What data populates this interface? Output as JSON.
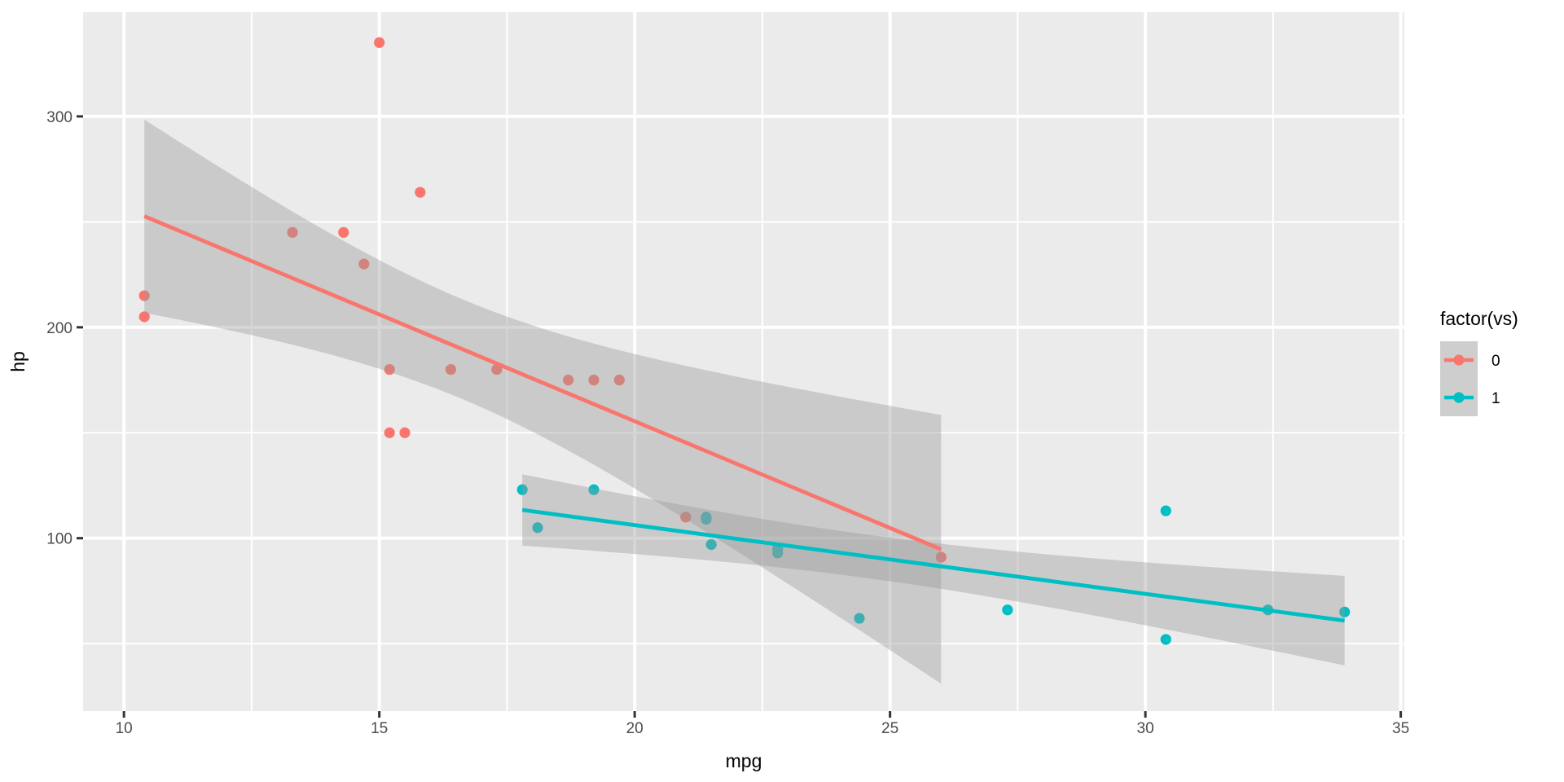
{
  "chart_data": {
    "type": "scatter",
    "title": "",
    "xlabel": "mpg",
    "ylabel": "hp",
    "x_ticks": [
      10,
      15,
      20,
      25,
      30,
      35
    ],
    "y_ticks": [
      100,
      200,
      300
    ],
    "x_minor_ticks": [
      12.5,
      17.5,
      22.5,
      27.5,
      32.5
    ],
    "y_minor_ticks": [
      50,
      150,
      250,
      350
    ],
    "xlim": [
      9.2,
      35.07
    ],
    "ylim": [
      18.0,
      349.4
    ],
    "grid": "on",
    "legend": {
      "title": "factor(vs)",
      "position": "right",
      "entries": [
        {
          "label": "0",
          "color": "#F8766D"
        },
        {
          "label": "1",
          "color": "#00BFC4"
        }
      ]
    },
    "smooth": {
      "method": "lm",
      "level": 0.95,
      "ribbon_color": "#999999",
      "ribbon_opacity": 0.4
    },
    "series": [
      {
        "name": "0",
        "color": "#F8766D",
        "points": [
          [
            21.0,
            110
          ],
          [
            21.0,
            110
          ],
          [
            18.7,
            175
          ],
          [
            14.3,
            245
          ],
          [
            16.4,
            180
          ],
          [
            17.3,
            180
          ],
          [
            15.2,
            180
          ],
          [
            10.4,
            205
          ],
          [
            10.4,
            215
          ],
          [
            14.7,
            230
          ],
          [
            15.5,
            150
          ],
          [
            15.2,
            150
          ],
          [
            13.3,
            245
          ],
          [
            19.2,
            175
          ],
          [
            26.0,
            91
          ],
          [
            15.8,
            264
          ],
          [
            19.7,
            175
          ],
          [
            15.0,
            335
          ]
        ]
      },
      {
        "name": "1",
        "color": "#00BFC4",
        "points": [
          [
            22.8,
            93
          ],
          [
            21.4,
            110
          ],
          [
            18.1,
            105
          ],
          [
            24.4,
            62
          ],
          [
            22.8,
            95
          ],
          [
            19.2,
            123
          ],
          [
            17.8,
            123
          ],
          [
            32.4,
            66
          ],
          [
            30.4,
            52
          ],
          [
            33.9,
            65
          ],
          [
            21.5,
            97
          ],
          [
            27.3,
            66
          ],
          [
            30.4,
            113
          ],
          [
            21.4,
            109
          ]
        ]
      }
    ],
    "colors": {
      "panel_bg": "#EBEBEB",
      "grid": "#FFFFFF",
      "tick_text": "#4D4D4D",
      "axis_title": "#000000",
      "tick_mark": "#333333",
      "legend_key_bg": "#CECECE",
      "outer_bg": "#FFFFFF"
    }
  }
}
